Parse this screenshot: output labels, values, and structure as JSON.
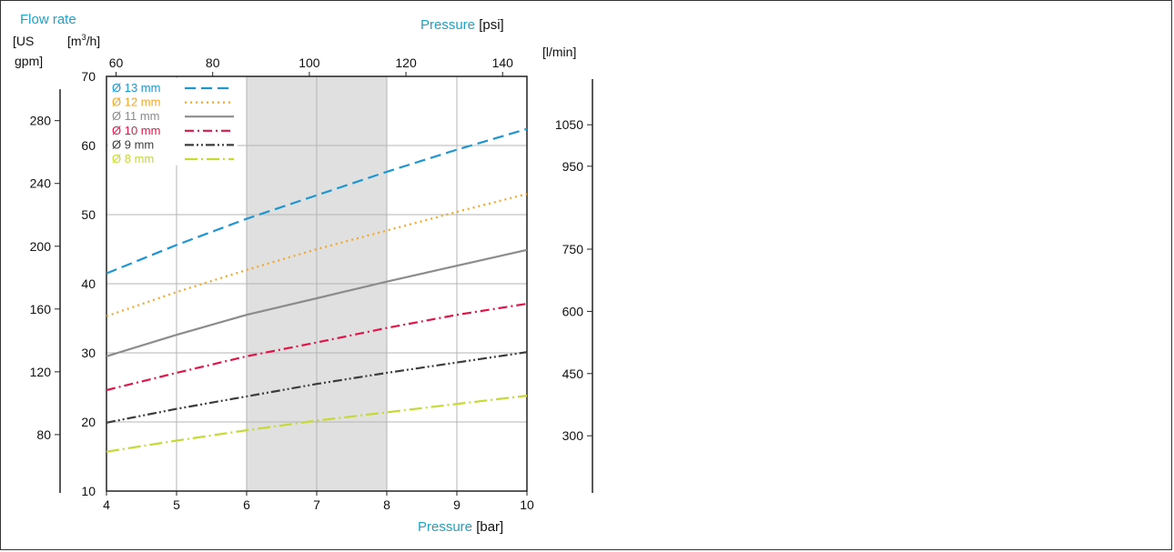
{
  "chart_data": {
    "type": "line",
    "title_left": "Flow rate",
    "unit_usgpm_a": "[US",
    "unit_usgpm_b": "gpm]",
    "unit_m3h_a": "[m",
    "unit_m3h_sup": "3",
    "unit_m3h_b": "/h]",
    "unit_lmin": "[l/min]",
    "top_axis_word": "Pressure",
    "top_axis_unit": "[psi]",
    "bottom_axis_word": "Pressure",
    "bottom_axis_unit": "[bar]",
    "x_bar": [
      4,
      5,
      6,
      7,
      8,
      9,
      10
    ],
    "x_psi_ticks": [
      60,
      80,
      100,
      120,
      140
    ],
    "y_m3h_ticks": [
      10,
      20,
      30,
      40,
      50,
      60,
      70
    ],
    "y_usgpm_ticks": [
      80,
      120,
      160,
      200,
      240,
      280
    ],
    "y_lmin_ticks": [
      300,
      450,
      600,
      750,
      950,
      1050
    ],
    "xlim_bar": [
      4,
      10
    ],
    "ylim_m3h": [
      10,
      70
    ],
    "shaded_range_bar": [
      6,
      8
    ],
    "grid": true,
    "legend_position": "top-left",
    "colors": {
      "d13": "#1d96d2",
      "d12": "#f5a623",
      "d11": "#8c8c8c",
      "d10": "#e0154b",
      "d9": "#3c3c3c",
      "d8": "#c6d934",
      "teal_label": "#1ba3c9"
    },
    "series": [
      {
        "name": "Ø 13 mm",
        "key": "d13",
        "dash": "12,6",
        "values": [
          41.5,
          45.6,
          49.4,
          52.8,
          56.2,
          59.4,
          62.4
        ]
      },
      {
        "name": "Ø 12 mm",
        "key": "d12",
        "dash": "2,4",
        "values": [
          35.3,
          38.8,
          42.0,
          45.0,
          47.7,
          50.4,
          53.0
        ]
      },
      {
        "name": "Ø 11 mm",
        "key": "d11",
        "dash": "",
        "values": [
          29.5,
          32.6,
          35.5,
          37.9,
          40.3,
          42.6,
          44.9
        ]
      },
      {
        "name": "Ø 10 mm",
        "key": "d10",
        "dash": "10,4,2,4",
        "values": [
          24.6,
          27.1,
          29.5,
          31.5,
          33.6,
          35.5,
          37.1
        ]
      },
      {
        "name": "Ø 9 mm",
        "key": "d9",
        "dash": "10,3,2,3,2,3",
        "values": [
          19.9,
          21.9,
          23.7,
          25.5,
          27.1,
          28.6,
          30.1
        ]
      },
      {
        "name": "Ø 8 mm",
        "key": "d8",
        "dash": "14,4,2,4",
        "values": [
          15.7,
          17.3,
          18.8,
          20.2,
          21.4,
          22.6,
          23.8
        ]
      }
    ]
  }
}
